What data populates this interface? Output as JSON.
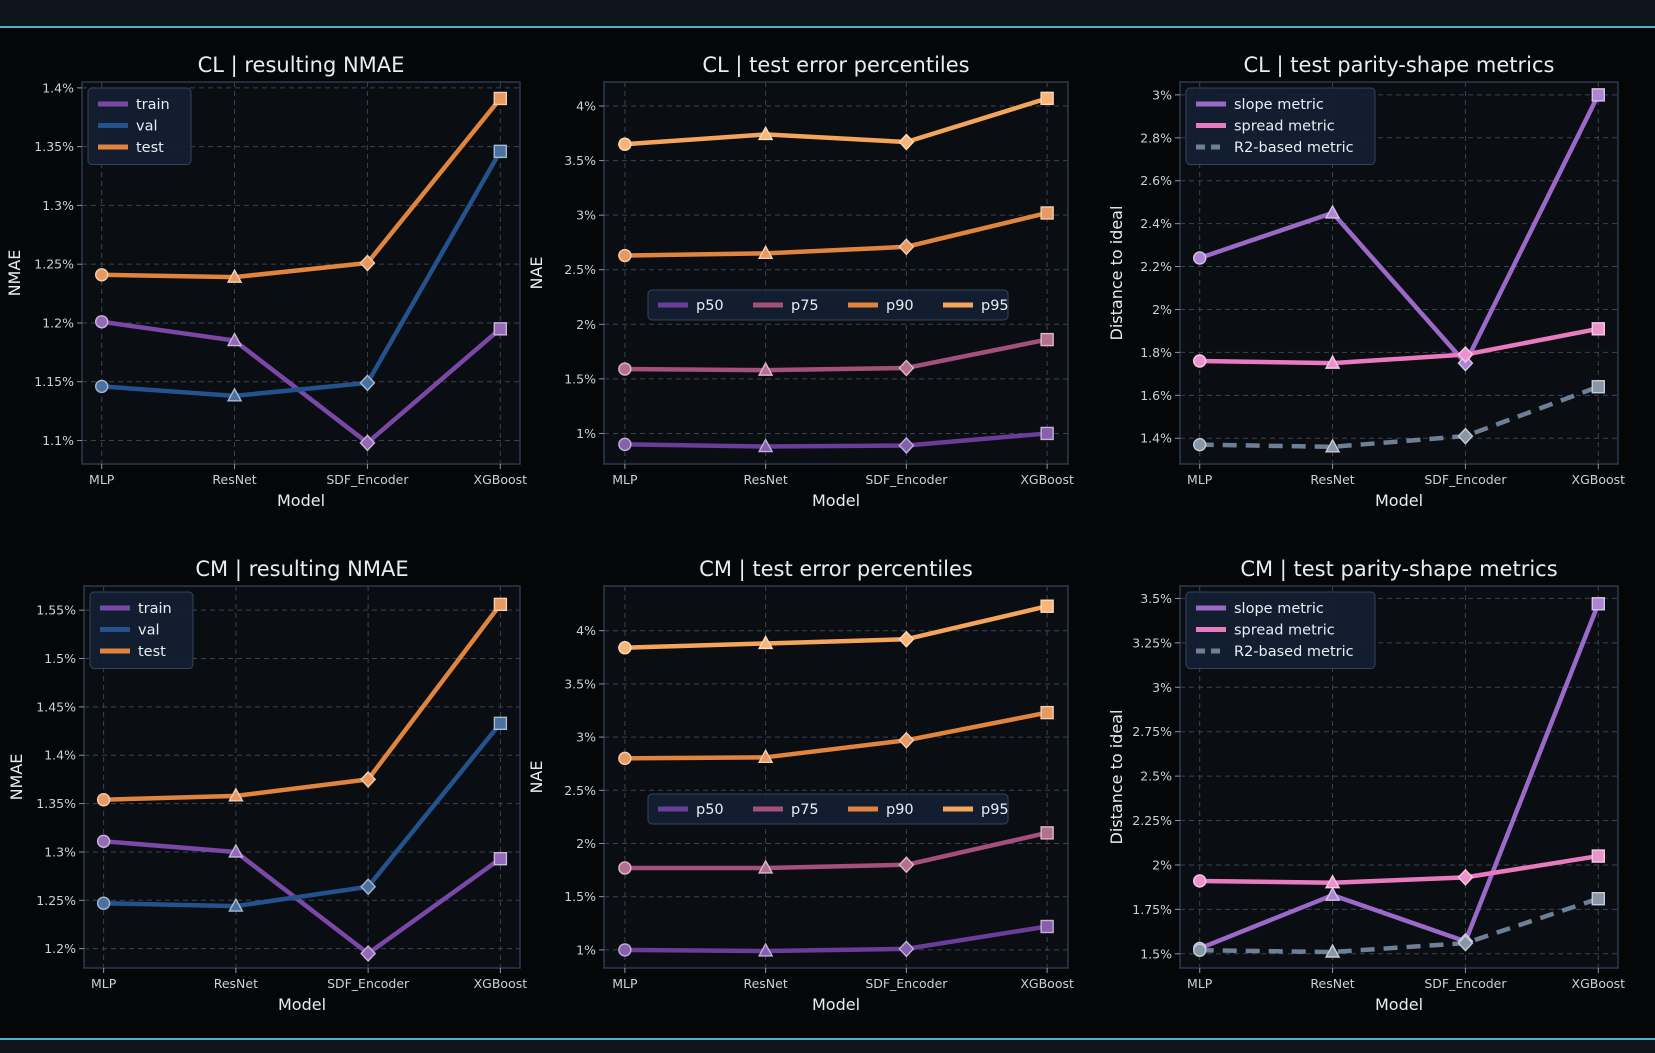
{
  "colors": {
    "plot_bg": "#0a0d12",
    "frame": "#2c3a4c",
    "grid": "#3a4350",
    "legend_bg": "#142033",
    "legend_edge": "#34445a"
  },
  "chart_data": [
    {
      "type": "line",
      "title": "CL | resulting NMAE",
      "xlabel": "Model",
      "ylabel": "NMAE",
      "categories": [
        "MLP",
        "ResNet",
        "SDF_Encoder",
        "XGBoost"
      ],
      "ylim": [
        1.08,
        1.405
      ],
      "yticks": [
        1.1,
        1.15,
        1.2,
        1.25,
        1.3,
        1.35,
        1.4
      ],
      "ytick_labels": [
        "1.1%",
        "1.15%",
        "1.2%",
        "1.25%",
        "1.3%",
        "1.35%",
        "1.4%"
      ],
      "legend": {
        "placement": "upper-left",
        "columns": 1
      },
      "series": [
        {
          "name": "train",
          "values": [
            1.201,
            1.185,
            1.098,
            1.195
          ],
          "color": "#7b48a8"
        },
        {
          "name": "val",
          "values": [
            1.146,
            1.138,
            1.149,
            1.346
          ],
          "color": "#23528c"
        },
        {
          "name": "test",
          "values": [
            1.241,
            1.239,
            1.251,
            1.391
          ],
          "color": "#e0843e"
        }
      ]
    },
    {
      "type": "line",
      "title": "CL | test error percentiles",
      "xlabel": "Model",
      "ylabel": "NAE",
      "categories": [
        "MLP",
        "ResNet",
        "SDF_Encoder",
        "XGBoost"
      ],
      "ylim": [
        0.72,
        4.22
      ],
      "yticks": [
        1,
        1.5,
        2,
        2.5,
        3,
        3.5,
        4
      ],
      "ytick_labels": [
        "1%",
        "1.5%",
        "2%",
        "2.5%",
        "3%",
        "3.5%",
        "4%"
      ],
      "legend": {
        "placement": "center",
        "columns": 4
      },
      "series": [
        {
          "name": "p50",
          "values": [
            0.9,
            0.88,
            0.89,
            1.0
          ],
          "color": "#6a3d9a"
        },
        {
          "name": "p75",
          "values": [
            1.59,
            1.58,
            1.6,
            1.86
          ],
          "color": "#a4507a"
        },
        {
          "name": "p90",
          "values": [
            2.63,
            2.65,
            2.71,
            3.02
          ],
          "color": "#e0843e"
        },
        {
          "name": "p95",
          "values": [
            3.65,
            3.74,
            3.67,
            4.07
          ],
          "color": "#f5a55a"
        }
      ]
    },
    {
      "type": "line",
      "title": "CL | test parity-shape metrics",
      "xlabel": "Model",
      "ylabel": "Distance to ideal",
      "categories": [
        "MLP",
        "ResNet",
        "SDF_Encoder",
        "XGBoost"
      ],
      "ylim": [
        1.28,
        3.06
      ],
      "yticks": [
        1.4,
        1.6,
        1.8,
        2.0,
        2.2,
        2.4,
        2.6,
        2.8,
        3.0
      ],
      "ytick_labels": [
        "1.4%",
        "1.6%",
        "1.8%",
        "2%",
        "2.2%",
        "2.4%",
        "2.6%",
        "2.8%",
        "3%"
      ],
      "legend": {
        "placement": "upper-left",
        "columns": 1
      },
      "series": [
        {
          "name": "slope metric",
          "values": [
            2.24,
            2.45,
            1.75,
            3.0
          ],
          "color": "#9b6ac9"
        },
        {
          "name": "spread metric",
          "values": [
            1.76,
            1.75,
            1.79,
            1.91
          ],
          "color": "#e87ac1"
        },
        {
          "name": "R2-based metric",
          "values": [
            1.37,
            1.36,
            1.41,
            1.64
          ],
          "color": "#6e8095",
          "dashed": true
        }
      ]
    },
    {
      "type": "line",
      "title": "CM | resulting NMAE",
      "xlabel": "Model",
      "ylabel": "NMAE",
      "categories": [
        "MLP",
        "ResNet",
        "SDF_Encoder",
        "XGBoost"
      ],
      "ylim": [
        1.18,
        1.575
      ],
      "yticks": [
        1.2,
        1.25,
        1.3,
        1.35,
        1.4,
        1.45,
        1.5,
        1.55
      ],
      "ytick_labels": [
        "1.2%",
        "1.25%",
        "1.3%",
        "1.35%",
        "1.4%",
        "1.45%",
        "1.5%",
        "1.55%"
      ],
      "legend": {
        "placement": "upper-left",
        "columns": 1
      },
      "series": [
        {
          "name": "train",
          "values": [
            1.311,
            1.3,
            1.195,
            1.293
          ],
          "color": "#7b48a8"
        },
        {
          "name": "val",
          "values": [
            1.247,
            1.244,
            1.264,
            1.433
          ],
          "color": "#23528c"
        },
        {
          "name": "test",
          "values": [
            1.354,
            1.358,
            1.375,
            1.556
          ],
          "color": "#e0843e"
        }
      ]
    },
    {
      "type": "line",
      "title": "CM | test error percentiles",
      "xlabel": "Model",
      "ylabel": "NAE",
      "categories": [
        "MLP",
        "ResNet",
        "SDF_Encoder",
        "XGBoost"
      ],
      "ylim": [
        0.83,
        4.42
      ],
      "yticks": [
        1,
        1.5,
        2,
        2.5,
        3,
        3.5,
        4
      ],
      "ytick_labels": [
        "1%",
        "1.5%",
        "2%",
        "2.5%",
        "3%",
        "3.5%",
        "4%"
      ],
      "legend": {
        "placement": "center",
        "columns": 4
      },
      "series": [
        {
          "name": "p50",
          "values": [
            1.0,
            0.99,
            1.01,
            1.22
          ],
          "color": "#6a3d9a"
        },
        {
          "name": "p75",
          "values": [
            1.77,
            1.77,
            1.8,
            2.1
          ],
          "color": "#a4507a"
        },
        {
          "name": "p90",
          "values": [
            2.8,
            2.81,
            2.97,
            3.23
          ],
          "color": "#e0843e"
        },
        {
          "name": "p95",
          "values": [
            3.84,
            3.88,
            3.92,
            4.23
          ],
          "color": "#f5a55a"
        }
      ]
    },
    {
      "type": "line",
      "title": "CM | test parity-shape metrics",
      "xlabel": "Model",
      "ylabel": "Distance to ideal",
      "categories": [
        "MLP",
        "ResNet",
        "SDF_Encoder",
        "XGBoost"
      ],
      "ylim": [
        1.42,
        3.57
      ],
      "yticks": [
        1.5,
        1.75,
        2.0,
        2.25,
        2.5,
        2.75,
        3.0,
        3.25,
        3.5
      ],
      "ytick_labels": [
        "1.5%",
        "1.75%",
        "2%",
        "2.25%",
        "2.5%",
        "2.75%",
        "3%",
        "3.25%",
        "3.5%"
      ],
      "legend": {
        "placement": "upper-left",
        "columns": 1
      },
      "series": [
        {
          "name": "slope metric",
          "values": [
            1.53,
            1.83,
            1.57,
            3.47
          ],
          "color": "#9b6ac9"
        },
        {
          "name": "spread metric",
          "values": [
            1.91,
            1.9,
            1.93,
            2.05
          ],
          "color": "#e87ac1"
        },
        {
          "name": "R2-based metric",
          "values": [
            1.52,
            1.51,
            1.56,
            1.81
          ],
          "color": "#6e8095",
          "dashed": true
        }
      ]
    }
  ]
}
